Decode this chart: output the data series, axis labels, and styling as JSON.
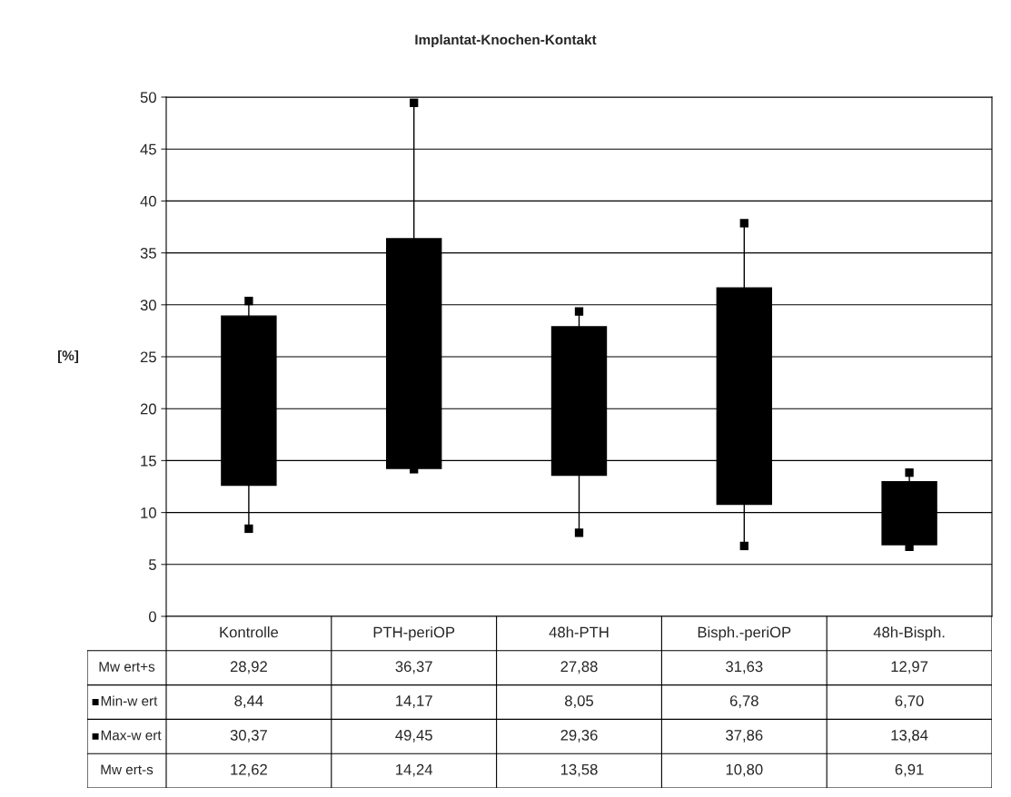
{
  "chart_data": {
    "type": "candlestick",
    "title": "Implantat-Knochen-Kontakt",
    "ylabel": "[%]",
    "categories": [
      "Kontrolle",
      "PTH-periOP",
      "48h-PTH",
      "Bisph.-periOP",
      "48h-Bisph."
    ],
    "ohlc": [
      [
        28.92,
        30.37,
        8.44,
        12.62
      ],
      [
        36.37,
        49.45,
        14.17,
        14.24
      ],
      [
        27.88,
        29.36,
        8.05,
        13.58
      ],
      [
        31.63,
        37.86,
        6.78,
        10.8
      ],
      [
        12.97,
        13.84,
        6.7,
        6.91
      ]
    ],
    "series": [
      {
        "name": "Mw ert+s",
        "values": [
          null,
          null,
          null,
          null,
          null
        ],
        "value_labels": [
          "28,92",
          "36,37",
          "27,88",
          "31,63",
          "12,97"
        ]
      },
      {
        "name": "Min-w ert",
        "type": "scatter",
        "marker": "square",
        "color": "#000000",
        "values": [
          8.44,
          14.17,
          8.05,
          6.78,
          6.7
        ],
        "value_labels": [
          "8,44",
          "14,17",
          "8,05",
          "6,78",
          "6,70"
        ]
      },
      {
        "name": "Max-w ert",
        "type": "scatter",
        "marker": "square",
        "color": "#000000",
        "values": [
          30.37,
          49.45,
          29.36,
          37.86,
          13.84
        ],
        "value_labels": [
          "30,37",
          "49,45",
          "29,36",
          "37,86",
          "13,84"
        ]
      },
      {
        "name": "Mw ert-s",
        "values": [
          null,
          null,
          null,
          null,
          null
        ],
        "value_labels": [
          "12,62",
          "14,24",
          "13,58",
          "10,80",
          "6,91"
        ]
      }
    ],
    "legend": "bottom left",
    "ylim": [
      0,
      50
    ],
    "yticks": [
      0,
      5,
      10,
      15,
      20,
      25,
      30,
      35,
      40,
      45,
      50
    ],
    "grid": "y"
  }
}
